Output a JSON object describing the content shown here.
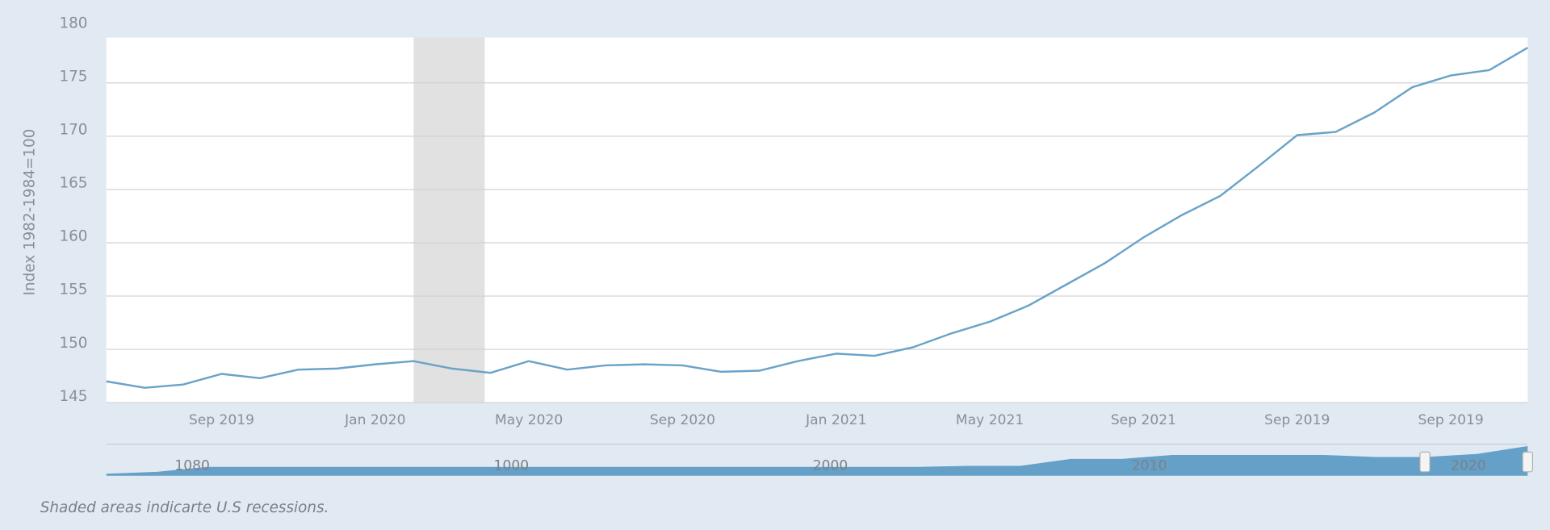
{
  "chart_data": {
    "type": "line",
    "y_label": "Index 1982-1984=100",
    "categories": [
      null,
      null,
      null,
      "Sep 2019",
      null,
      null,
      null,
      "Jan 2020",
      null,
      null,
      null,
      "May 2020",
      null,
      null,
      null,
      "Sep 2020",
      null,
      null,
      null,
      "Jan 2021",
      null,
      null,
      null,
      "May 2021",
      null,
      null,
      null,
      "Sep 2021",
      null,
      null,
      null,
      "Sep 2019",
      null,
      null,
      null,
      "Sep 2019",
      null,
      null
    ],
    "series": [
      {
        "color": "#6aa3c8",
        "values": [
          147.0,
          146.4,
          146.7,
          147.7,
          147.3,
          148.1,
          148.2,
          148.6,
          148.9,
          148.2,
          147.8,
          148.9,
          148.1,
          148.5,
          148.6,
          148.5,
          147.9,
          148.0,
          148.9,
          149.6,
          149.4,
          150.2,
          151.5,
          152.6,
          154.1,
          156.1,
          158.1,
          160.5,
          162.6,
          164.4,
          167.2,
          170.1,
          170.4,
          172.2,
          174.6,
          175.7,
          176.2,
          178.3
        ]
      }
    ],
    "ylim": [
      145,
      180
    ],
    "yticks": [
      145,
      150,
      155,
      160,
      165,
      170,
      175,
      180
    ],
    "grid": true,
    "recession": {
      "start": 8,
      "end": 9.85,
      "color": "#e1e1e1"
    },
    "navigator": {
      "labels": [
        "1080",
        "1000",
        "2000",
        "2010",
        "2020"
      ],
      "color": "#64a0c8",
      "ylim": [
        0,
        32
      ],
      "values": [
        2,
        4,
        9,
        9,
        9,
        9,
        9,
        9,
        9,
        9,
        9,
        9,
        9,
        9,
        9,
        9,
        9,
        10,
        10,
        17,
        17,
        21,
        21,
        21,
        21,
        19,
        19,
        22,
        30
      ]
    },
    "note": "Shaded areas indicarte U.S recessions."
  }
}
